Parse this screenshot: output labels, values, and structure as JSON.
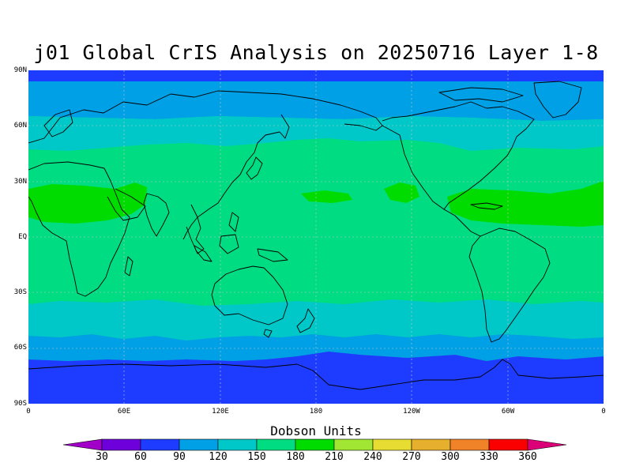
{
  "title": "j01 Global CrIS Analysis on 20250716 Layer 1-8",
  "lat_ticks": [
    "90N",
    "60N",
    "30N",
    "EQ",
    "30S",
    "60S",
    "90S"
  ],
  "lon_ticks": [
    "0",
    "60E",
    "120E",
    "180",
    "120W",
    "60W",
    "0"
  ],
  "colorbar": {
    "title": "Dobson Units",
    "labels": [
      "30",
      "60",
      "90",
      "120",
      "150",
      "180",
      "210",
      "240",
      "270",
      "300",
      "330",
      "360"
    ],
    "colors": [
      "#a000c8",
      "#6e00dc",
      "#1e3cff",
      "#00a0e6",
      "#00c8c8",
      "#00dc82",
      "#00dc00",
      "#a0e632",
      "#e6dc32",
      "#e6af2d",
      "#f08228",
      "#fa0000",
      "#dc0078"
    ]
  }
}
